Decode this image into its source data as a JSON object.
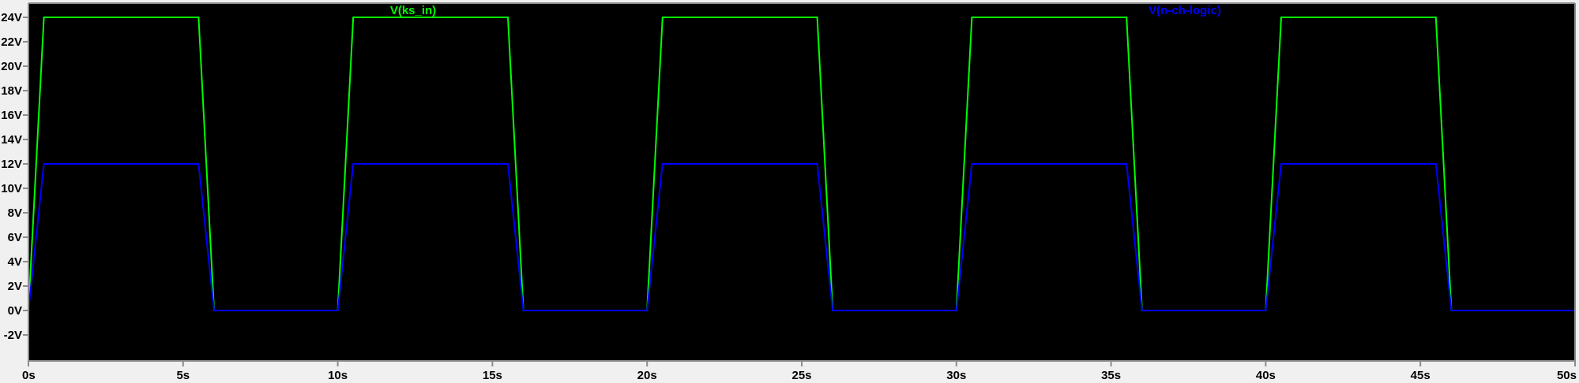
{
  "chart_data": {
    "type": "line",
    "title": "",
    "xlabel": "",
    "ylabel": "",
    "xlim": [
      0,
      50
    ],
    "ylim": [
      -2,
      24
    ],
    "x_ticks": [
      0,
      5,
      10,
      15,
      20,
      25,
      30,
      35,
      40,
      45,
      50
    ],
    "x_tick_labels": [
      "0s",
      "5s",
      "10s",
      "15s",
      "20s",
      "25s",
      "30s",
      "35s",
      "40s",
      "45s",
      "50s"
    ],
    "y_ticks": [
      -2,
      0,
      2,
      4,
      6,
      8,
      10,
      12,
      14,
      16,
      18,
      20,
      22,
      24
    ],
    "y_tick_labels": [
      "-2V",
      "0V",
      "2V",
      "4V",
      "6V",
      "8V",
      "10V",
      "12V",
      "14V",
      "16V",
      "18V",
      "20V",
      "22V",
      "24V"
    ],
    "grid": false,
    "background": "#000000",
    "series": [
      {
        "name": "V(ks_in)",
        "color": "#00ff00",
        "x": [
          0,
          0.5,
          5.5,
          6,
          10,
          10.5,
          15.5,
          16,
          20,
          20.5,
          25.5,
          26,
          30,
          30.5,
          35.5,
          36,
          40,
          40.5,
          45.5,
          46,
          50
        ],
        "y": [
          0,
          24,
          24,
          0,
          0,
          24,
          24,
          0,
          0,
          24,
          24,
          0,
          0,
          24,
          24,
          0,
          0,
          24,
          24,
          0,
          0
        ]
      },
      {
        "name": "V(n-ch-logic)",
        "color": "#0000ff",
        "x": [
          0,
          0.5,
          5.5,
          6,
          10,
          10.5,
          15.5,
          16,
          20,
          20.5,
          25.5,
          26,
          30,
          30.5,
          35.5,
          36,
          40,
          40.5,
          45.5,
          46,
          50
        ],
        "y": [
          0,
          12,
          12,
          0,
          0,
          12,
          12,
          0,
          0,
          12,
          12,
          0,
          0,
          12,
          12,
          0,
          0,
          12,
          12,
          0,
          0
        ]
      }
    ]
  }
}
